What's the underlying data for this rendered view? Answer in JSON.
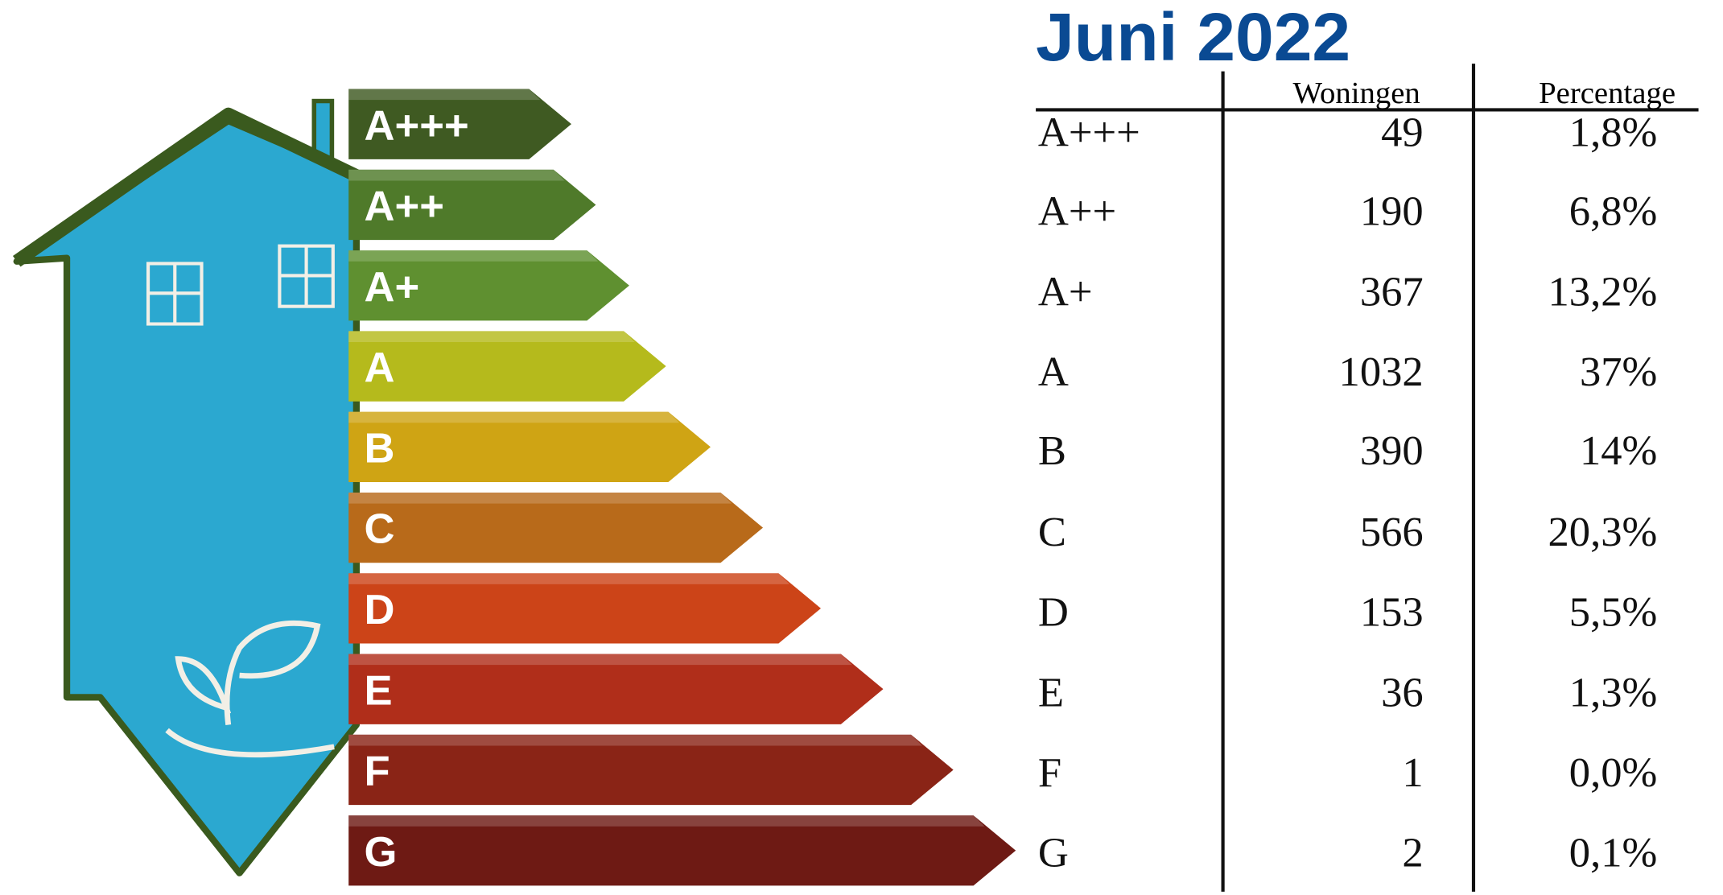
{
  "title": "Juni 2022",
  "table": {
    "columns": [
      "Woningen",
      "Percentage"
    ],
    "rows": [
      [
        "A+++",
        "49",
        "1,8%"
      ],
      [
        "A++",
        "190",
        "6,8%"
      ],
      [
        "A+",
        "367",
        "13,2%"
      ],
      [
        "A",
        "1032",
        "37%"
      ],
      [
        "B",
        "390",
        "14%"
      ],
      [
        "C",
        "566",
        "20,3%"
      ],
      [
        "D",
        "153",
        "5,5%"
      ],
      [
        "E",
        "36",
        "1,3%"
      ],
      [
        "F",
        "1",
        "0,0%"
      ],
      [
        "G",
        "2",
        "0,1%"
      ]
    ]
  }
}
